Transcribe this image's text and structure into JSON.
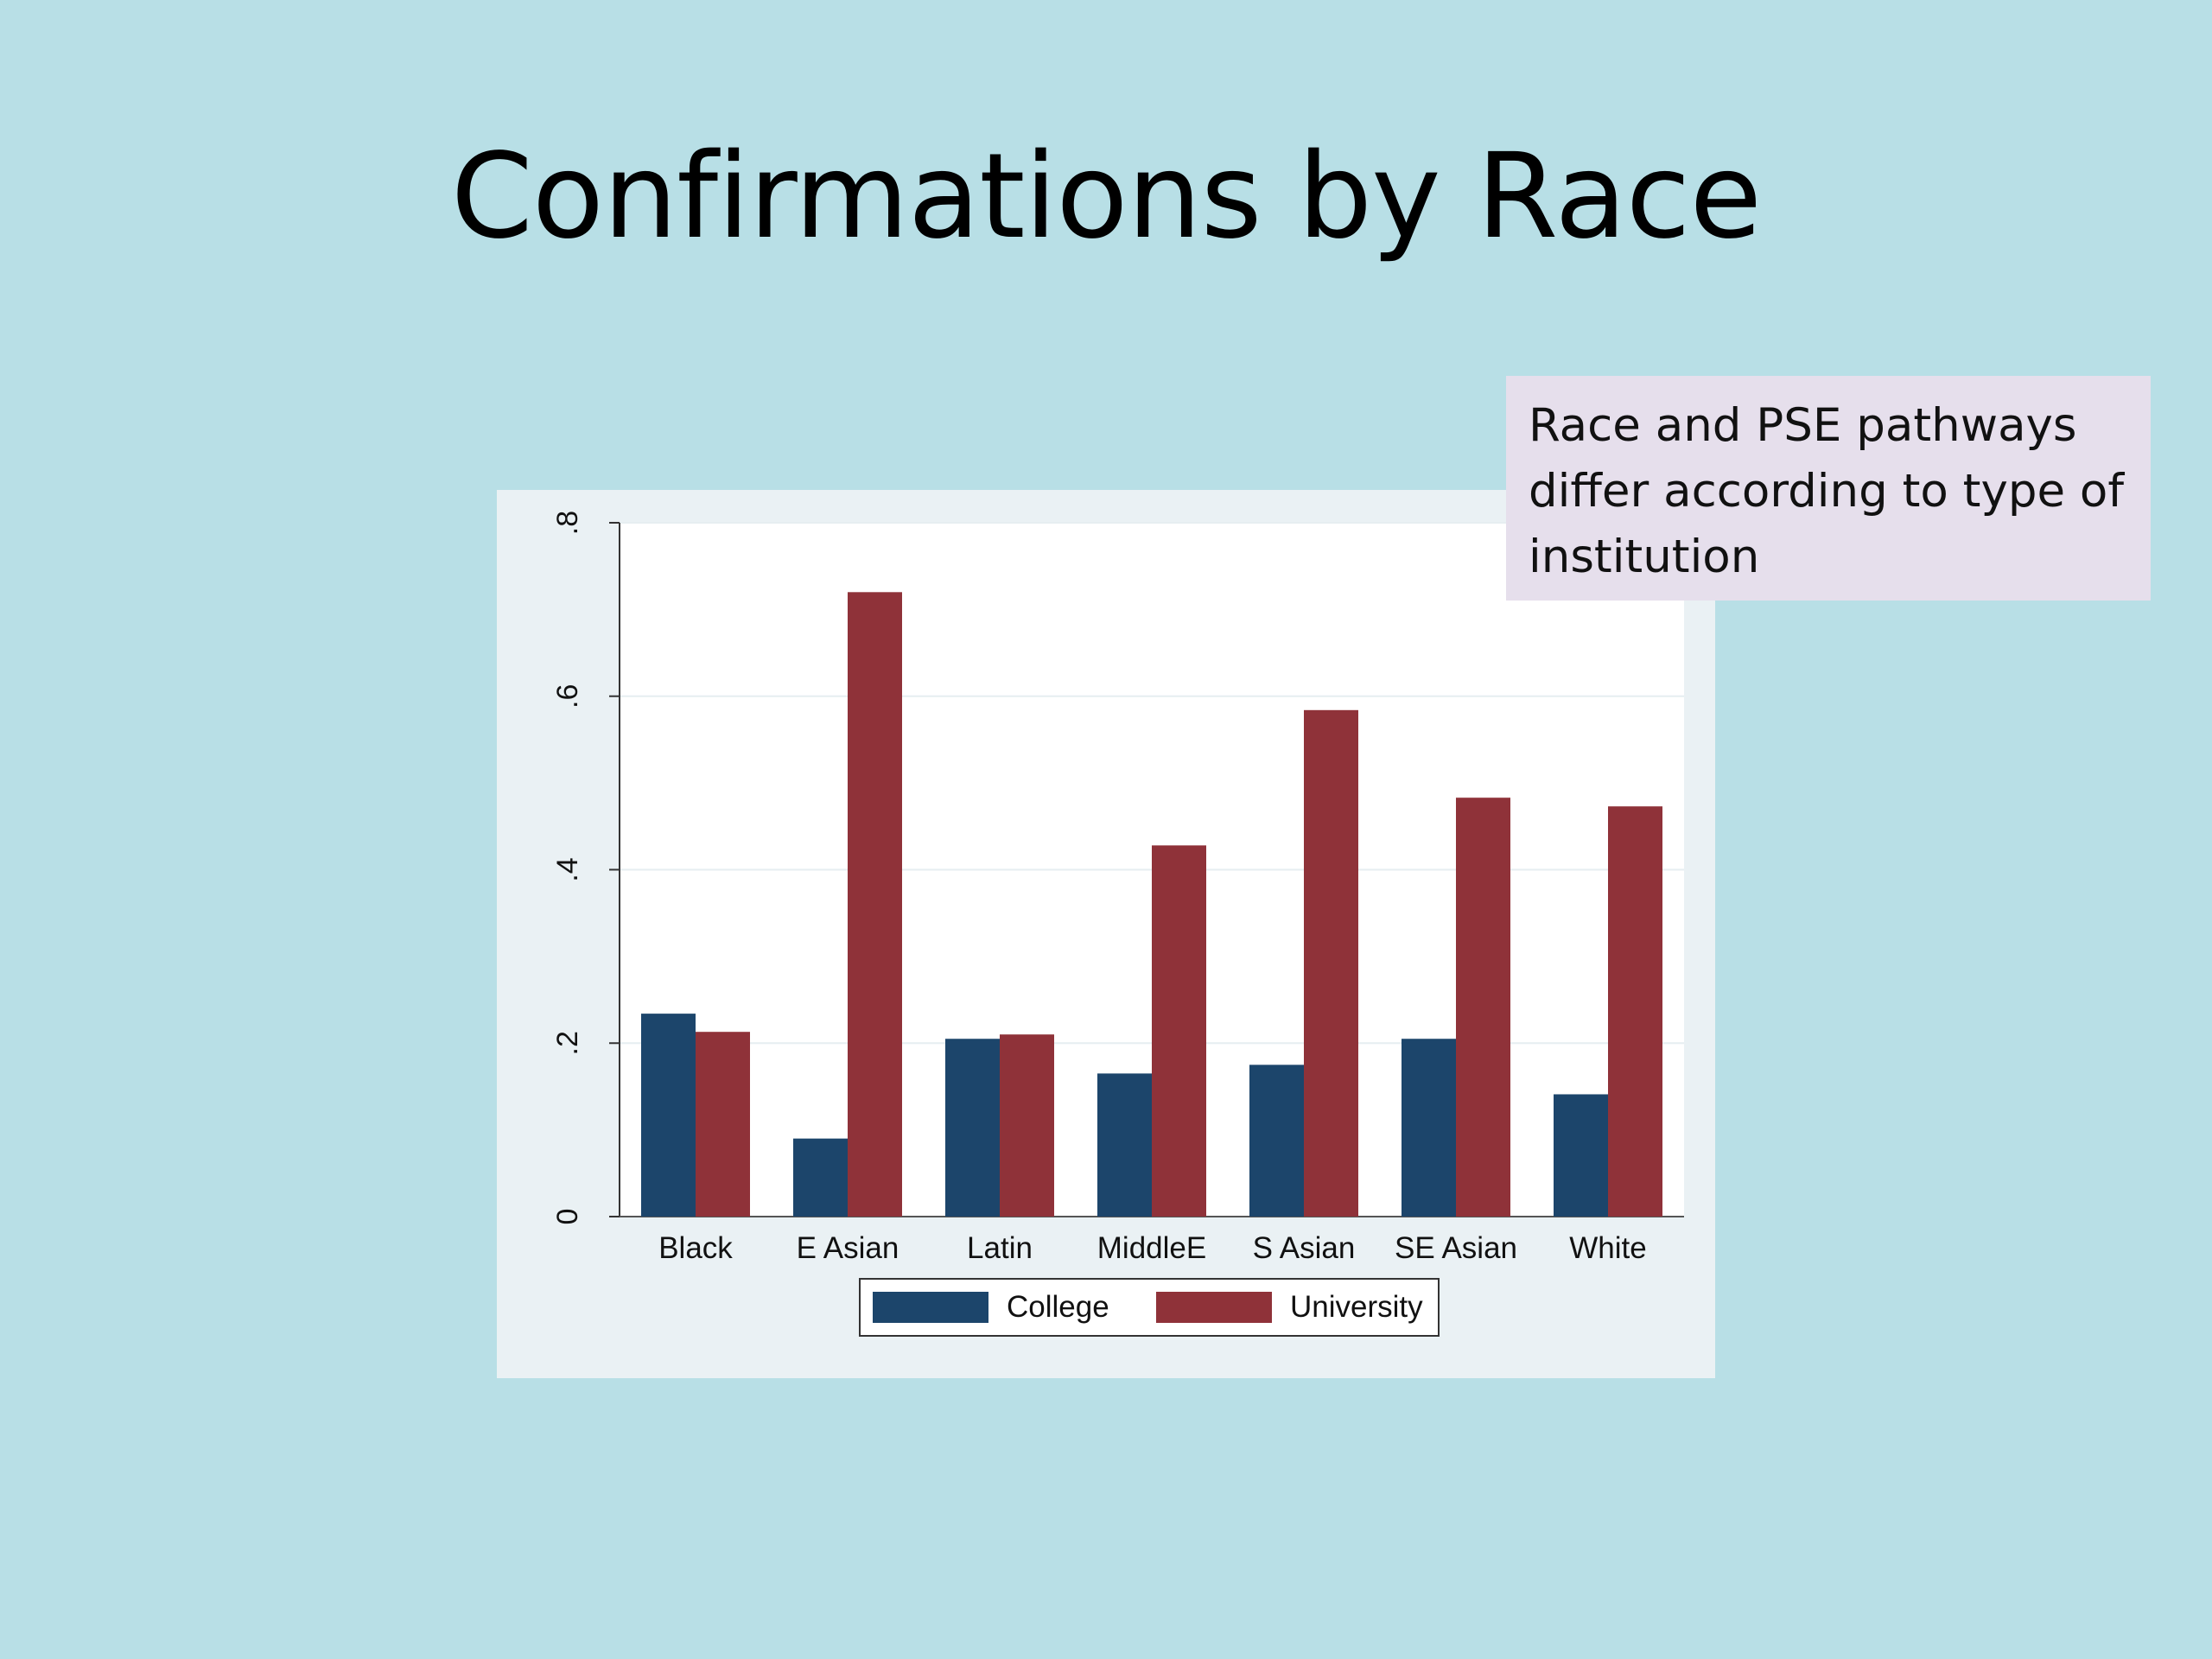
{
  "slide": {
    "title": "Confirmations by Race",
    "callout": "Race and PSE pathways differ according to type of institution"
  },
  "colors": {
    "background": "#b8dfe6",
    "panel": "#eaf1f4",
    "plot": "#ffffff",
    "callout": "#e6dfec",
    "college": "#1c456b",
    "university": "#8f3239"
  },
  "chart_data": {
    "type": "bar",
    "categories": [
      "Black",
      "E Asian",
      "Latin",
      "MiddleE",
      "S Asian",
      "SE Asian",
      "White"
    ],
    "series": [
      {
        "name": "College",
        "values": [
          0.234,
          0.09,
          0.205,
          0.165,
          0.175,
          0.205,
          0.141
        ]
      },
      {
        "name": "University",
        "values": [
          0.213,
          0.72,
          0.21,
          0.428,
          0.584,
          0.483,
          0.473
        ]
      }
    ],
    "ylim": [
      0,
      0.8
    ],
    "yticks": [
      {
        "value": 0,
        "label": "0"
      },
      {
        "value": 0.2,
        "label": ".2"
      },
      {
        "value": 0.4,
        "label": ".4"
      },
      {
        "value": 0.6,
        "label": ".6"
      },
      {
        "value": 0.8,
        "label": ".8"
      }
    ],
    "grid": true,
    "legend": "bottom-center"
  }
}
